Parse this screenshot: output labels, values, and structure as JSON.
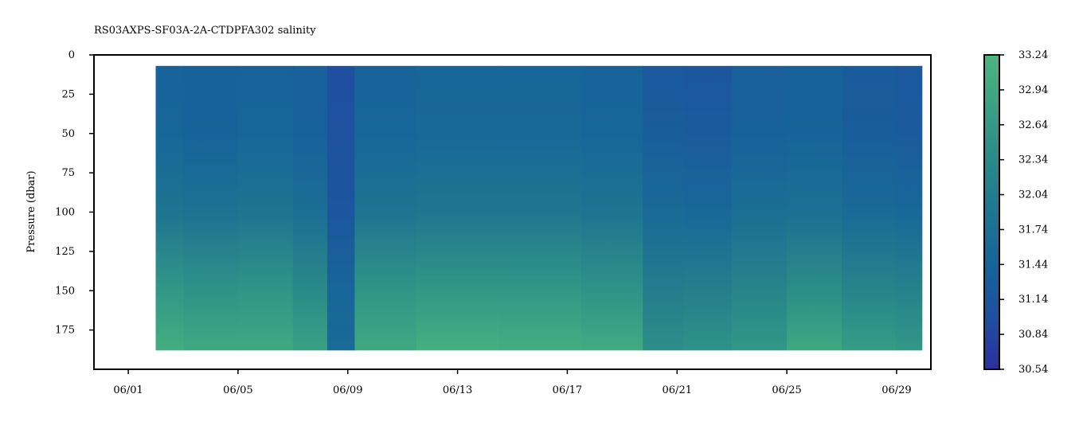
{
  "chart_data": {
    "type": "heatmap",
    "title": "RS03AXPS-SF03A-2A-CTDPFA302 salinity",
    "xlabel": "",
    "ylabel": "Pressure (dbar)",
    "x_axis": {
      "kind": "date",
      "range": [
        "2020-05-30T18:00",
        "2020-06-30T06:00"
      ],
      "tick_labels": [
        "06/01",
        "06/05",
        "06/09",
        "06/13",
        "06/17",
        "06/21",
        "06/25",
        "06/29"
      ]
    },
    "y_axis": {
      "range": [
        200,
        0
      ],
      "inverted": true,
      "ticks": [
        0,
        25,
        50,
        75,
        100,
        125,
        150,
        175
      ]
    },
    "data_extent": {
      "x": [
        "2020-06-02T00:00",
        "2020-06-29T22:00"
      ],
      "pressure": [
        7,
        188
      ]
    },
    "colorbar": {
      "range": [
        30.54,
        33.24
      ],
      "ticks": [
        "33.24",
        "32.94",
        "32.64",
        "32.34",
        "32.04",
        "31.74",
        "31.44",
        "31.14",
        "30.84",
        "30.54"
      ],
      "colors": [
        "#2b2f9e",
        "#1f4fa0",
        "#16639a",
        "#1f7690",
        "#2a8a88",
        "#3aa084",
        "#4db67f"
      ]
    },
    "profile_depths": [
      7,
      50,
      100,
      150,
      188
    ],
    "salinity_profiles": [
      {
        "date": "2020-06-02",
        "values": [
          31.45,
          31.5,
          31.85,
          32.6,
          33.05
        ]
      },
      {
        "date": "2020-06-04",
        "values": [
          31.4,
          31.45,
          31.8,
          32.5,
          32.95
        ]
      },
      {
        "date": "2020-06-06",
        "values": [
          31.45,
          31.5,
          31.85,
          32.55,
          32.95
        ]
      },
      {
        "date": "2020-06-08",
        "values": [
          31.35,
          31.4,
          31.7,
          32.35,
          32.8
        ]
      },
      {
        "date": "2020-06-08T12",
        "values": [
          31.0,
          31.05,
          31.15,
          31.5,
          31.6
        ]
      },
      {
        "date": "2020-06-10",
        "values": [
          31.45,
          31.5,
          31.85,
          32.55,
          32.95
        ]
      },
      {
        "date": "2020-06-13",
        "values": [
          31.5,
          31.55,
          31.9,
          32.6,
          33.1
        ]
      },
      {
        "date": "2020-06-16",
        "values": [
          31.5,
          31.55,
          31.9,
          32.6,
          33.05
        ]
      },
      {
        "date": "2020-06-19",
        "values": [
          31.45,
          31.5,
          31.85,
          32.5,
          33.0
        ]
      },
      {
        "date": "2020-06-20T12",
        "values": [
          31.2,
          31.3,
          31.6,
          32.05,
          32.45
        ]
      },
      {
        "date": "2020-06-22",
        "values": [
          31.15,
          31.25,
          31.55,
          32.1,
          32.5
        ]
      },
      {
        "date": "2020-06-24",
        "values": [
          31.35,
          31.4,
          31.7,
          32.2,
          32.6
        ]
      },
      {
        "date": "2020-06-26",
        "values": [
          31.4,
          31.45,
          31.75,
          32.4,
          32.95
        ]
      },
      {
        "date": "2020-06-28",
        "values": [
          31.25,
          31.3,
          31.6,
          32.2,
          32.7
        ]
      },
      {
        "date": "2020-06-29T22",
        "values": [
          31.2,
          31.25,
          31.55,
          32.15,
          32.6
        ]
      }
    ]
  }
}
